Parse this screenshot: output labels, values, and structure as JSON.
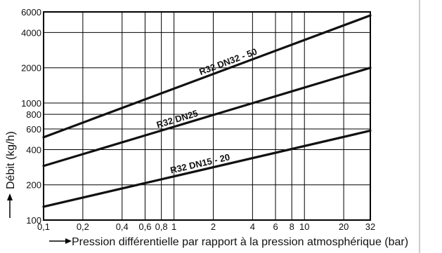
{
  "chart_data": {
    "type": "line",
    "xlabel": "Pression différentielle par rapport à la pression atmosphérique (bar)",
    "ylabel": "Débit (kg/h)",
    "xscale": "log",
    "yscale": "log",
    "xlim": [
      0.1,
      32
    ],
    "ylim": [
      100,
      6000
    ],
    "grid": true,
    "x_ticks": [
      0.1,
      0.2,
      0.4,
      0.6,
      0.8,
      1,
      2,
      4,
      6,
      8,
      10,
      20,
      32
    ],
    "x_tick_labels": [
      "0,1",
      "0,2",
      "0,4",
      "0,6",
      "0,8",
      "1",
      "2",
      "4",
      "6",
      "8",
      "10",
      "20",
      "32"
    ],
    "y_ticks": [
      100,
      200,
      400,
      600,
      800,
      1000,
      2000,
      4000,
      6000
    ],
    "y_tick_labels": [
      "100",
      "200",
      "400",
      "600",
      "800",
      "1000",
      "2000",
      "4000",
      "6000"
    ],
    "series": [
      {
        "name": "R32 DN32 - 50",
        "x": [
          0.1,
          32
        ],
        "y": [
          510,
          5600
        ]
      },
      {
        "name": "R32 DN25",
        "x": [
          0.1,
          32
        ],
        "y": [
          290,
          2000
        ]
      },
      {
        "name": "R32 DN15 - 20",
        "x": [
          0.1,
          32
        ],
        "y": [
          130,
          580
        ]
      }
    ]
  }
}
